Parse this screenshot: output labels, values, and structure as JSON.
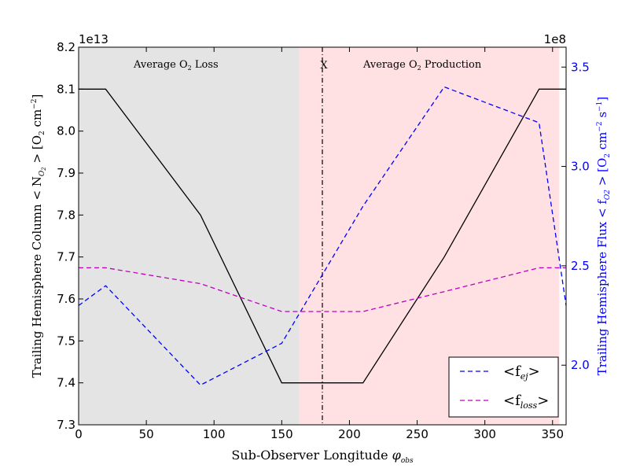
{
  "chart_data": {
    "type": "line",
    "xlabel_main": "Sub-Observer Longitude ",
    "xlabel_sym": "φ",
    "xlabel_sub": "obs",
    "xlim": [
      0,
      360
    ],
    "x_ticks": [
      0,
      50,
      100,
      150,
      200,
      250,
      300,
      350
    ],
    "y_left": {
      "label_pre": "Trailing Hemisphere Column < N",
      "label_sub": "O",
      "label_sub2": "2",
      "label_mid": " > [O",
      "label_sub3": "2",
      "label_post": " cm",
      "label_sup": "−2",
      "label_end": "]",
      "multiplier": "1e13",
      "lim": [
        7.3,
        8.2
      ],
      "ticks": [
        "7.3",
        "7.4",
        "7.5",
        "7.6",
        "7.7",
        "7.8",
        "7.9",
        "8.0",
        "8.1",
        "8.2"
      ]
    },
    "y_right": {
      "label_pre": "Trailing Hemisphere Flux < f",
      "label_sub": "O2",
      "label_mid": " > [O",
      "label_sub2": "2",
      "label_post": " cm",
      "label_sup1": "−2",
      "label_mid2": " s",
      "label_sup2": "−1",
      "label_end": "]",
      "multiplier": "1e8",
      "lim": [
        1.7,
        3.6
      ],
      "ticks": [
        "2.0",
        "2.5",
        "3.0",
        "3.5"
      ],
      "color": "#0000ff"
    },
    "regions": [
      {
        "name": "loss",
        "x0": 0,
        "x1": 163,
        "color": "#e4e4e4",
        "label": "Average O",
        "label_sub": "2",
        "label_end": " Loss"
      },
      {
        "name": "production",
        "x0": 163,
        "x1": 355,
        "color": "#ffe0e3",
        "label": "Average O",
        "label_sub": "2",
        "label_end": " Production"
      }
    ],
    "marker": {
      "x": 180,
      "label": "X"
    },
    "series": [
      {
        "name": "column",
        "axis": "left",
        "color": "#000000",
        "style": "solid",
        "x": [
          0,
          20,
          90,
          150,
          210,
          270,
          340,
          360
        ],
        "y": [
          8.1,
          8.1,
          7.8,
          7.4,
          7.4,
          7.7,
          8.1,
          8.1
        ]
      },
      {
        "name": "f_ej",
        "axis": "right",
        "color": "#0000ff",
        "style": "dashed",
        "legend_pre": "<f",
        "legend_sub": "ej",
        "legend_post": ">",
        "x": [
          0,
          20,
          90,
          150,
          210,
          270,
          340,
          360
        ],
        "y": [
          2.3,
          2.4,
          1.9,
          2.11,
          2.8,
          3.4,
          3.22,
          2.3
        ]
      },
      {
        "name": "f_loss",
        "axis": "right",
        "color": "#bf00bf",
        "style": "dashed",
        "legend_pre": "<f",
        "legend_sub": "loss",
        "legend_post": ">",
        "x": [
          0,
          20,
          90,
          150,
          210,
          270,
          340,
          360
        ],
        "y": [
          2.49,
          2.49,
          2.41,
          2.27,
          2.27,
          2.37,
          2.49,
          2.49
        ]
      }
    ],
    "legend_position": "lower-right"
  }
}
